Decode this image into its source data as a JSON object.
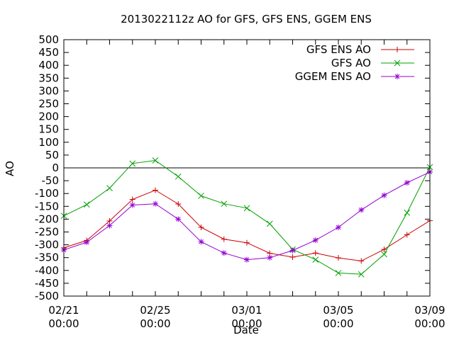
{
  "chart_data": {
    "type": "line",
    "title": "2013022112z AO for GFS, GFS ENS, GGEM ENS",
    "xlabel": "Date",
    "ylabel": "AO",
    "ylim": [
      -500,
      500
    ],
    "yticks": [
      500,
      450,
      400,
      350,
      300,
      250,
      200,
      150,
      100,
      50,
      0,
      -50,
      -100,
      -150,
      -200,
      -250,
      -300,
      -350,
      -400,
      -450,
      -500
    ],
    "ytick_labels": [
      "500",
      "450",
      "400",
      "350",
      "300",
      "250",
      "200",
      "150",
      "100",
      "50",
      "0",
      "-50",
      "-100",
      "-150",
      "-200",
      "-250",
      "-300",
      "-350",
      "-400",
      "-450",
      "-500"
    ],
    "xlim": [
      "02/21 00:00",
      "03/09 00:00"
    ],
    "xticks": [
      {
        "date": "02/21",
        "time": "00:00"
      },
      {
        "date": "02/25",
        "time": "00:00"
      },
      {
        "date": "03/01",
        "time": "00:00"
      },
      {
        "date": "03/05",
        "time": "00:00"
      },
      {
        "date": "03/09",
        "time": "00:00"
      }
    ],
    "x": [
      "02/21 00:00",
      "02/22 00:00",
      "02/23 00:00",
      "02/24 00:00",
      "02/25 00:00",
      "02/26 00:00",
      "02/27 00:00",
      "02/28 00:00",
      "03/01 00:00",
      "03/02 00:00",
      "03/03 00:00",
      "03/04 00:00",
      "03/05 00:00",
      "03/06 00:00",
      "03/07 00:00",
      "03/08 00:00",
      "03/09 00:00"
    ],
    "zero_line": true,
    "grid": false,
    "legend_position": "top-right",
    "series": [
      {
        "name": "GFS ENS AO",
        "color": "#cc0000",
        "marker": "plus",
        "values": [
          -312,
          -283,
          -207,
          -123,
          -87,
          -141,
          -232,
          -278,
          -292,
          -333,
          -348,
          -332,
          -351,
          -363,
          -318,
          -261,
          -206
        ]
      },
      {
        "name": "GFS AO",
        "color": "#00a000",
        "marker": "cross",
        "values": [
          -187,
          -143,
          -79,
          17,
          29,
          -34,
          -109,
          -140,
          -157,
          -218,
          -318,
          -358,
          -410,
          -415,
          -337,
          -175,
          3
        ]
      },
      {
        "name": "GGEM ENS AO",
        "color": "#9400d3",
        "marker": "star",
        "values": [
          -320,
          -290,
          -225,
          -145,
          -140,
          -200,
          -288,
          -332,
          -358,
          -350,
          -322,
          -282,
          -232,
          -164,
          -107,
          -58,
          -16
        ]
      }
    ]
  }
}
